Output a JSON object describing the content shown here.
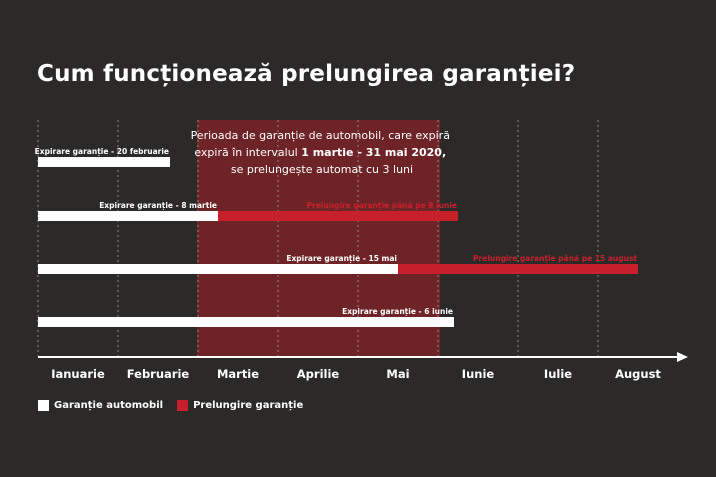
{
  "title": "Cum funcționează prelungirea garanției?",
  "colors": {
    "background": "#2b2a29",
    "warranty": "#ffffff",
    "extension": "#c8202b",
    "highlight": "#6e2326",
    "gridline": "#8a8886",
    "text": "#ffffff"
  },
  "chart_data": {
    "type": "timeline",
    "months": [
      "Ianuarie",
      "Februarie",
      "Martie",
      "Aprilie",
      "Mai",
      "Iunie",
      "Iulie",
      "August"
    ],
    "highlight_period": {
      "start": 2.0,
      "end": 5.0,
      "text_before": "Perioada de garanție de automobil, care expiră în intervalul ",
      "text_bold": "1 martie - 31 mai 2020,",
      "text_after": "se prelungește automat cu 3 luni"
    },
    "rows": [
      {
        "warranty_end": 1.65,
        "warranty_label": "Expirare garanție - 20 februarie",
        "extension_end": null,
        "extension_label": ""
      },
      {
        "warranty_end": 2.25,
        "warranty_label": "Expirare garanție - 8 martie",
        "extension_end": 5.25,
        "extension_label": "Prelungire garanție până pe 8 iunie"
      },
      {
        "warranty_end": 4.5,
        "warranty_label": "Expirare garanție - 15 mai",
        "extension_end": 7.5,
        "extension_label": "Prelungire garanție până pe 15 august"
      },
      {
        "warranty_end": 5.2,
        "warranty_label": "Expirare garanție - 6 iunie",
        "extension_end": null,
        "extension_label": ""
      }
    ]
  },
  "legend": {
    "warranty_label": "Garanție automobil",
    "extension_label": "Prelungire garanție"
  }
}
